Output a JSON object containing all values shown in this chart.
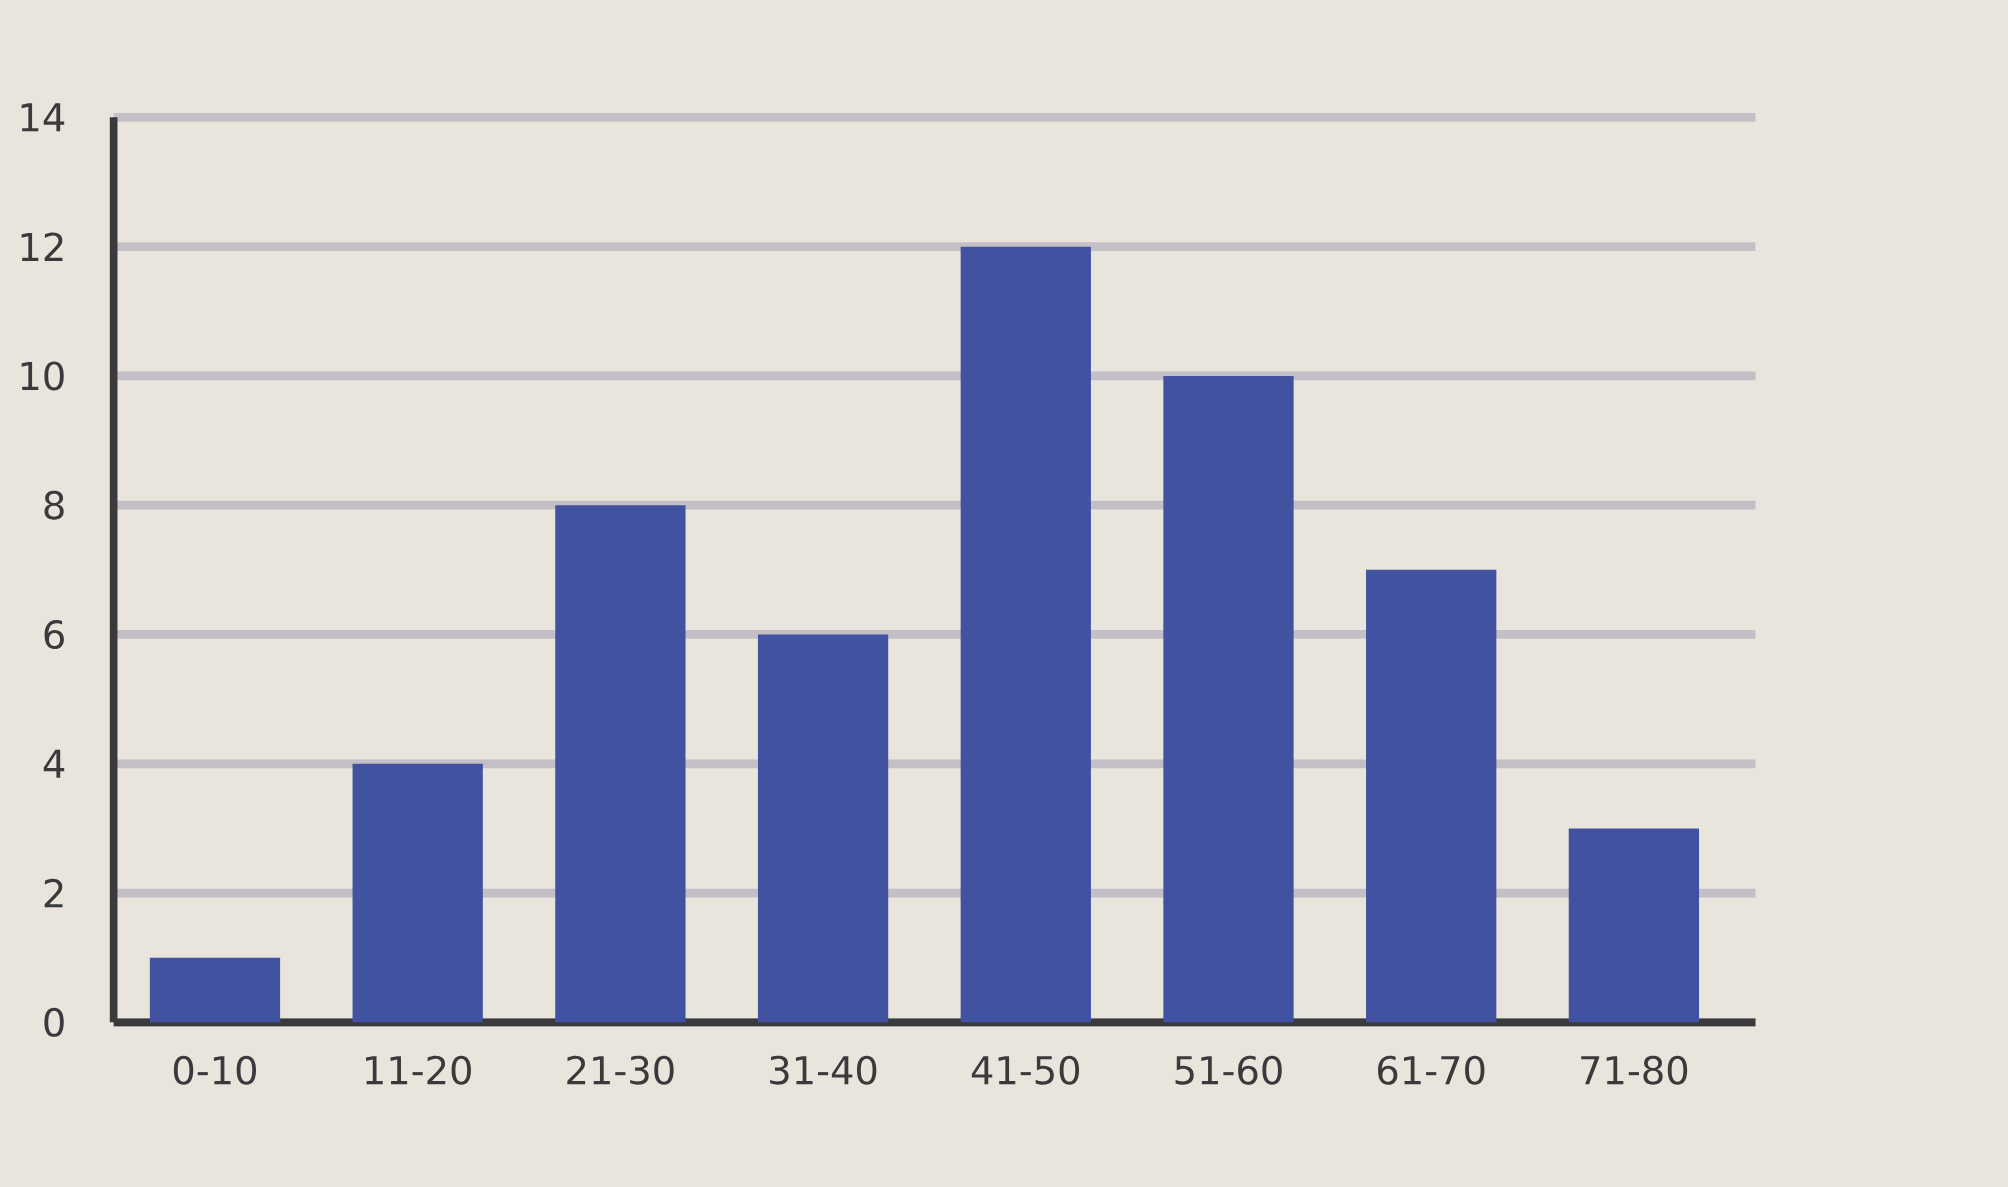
{
  "chart_data": {
    "type": "bar",
    "categories": [
      "0-10",
      "11-20",
      "21-30",
      "31-40",
      "41-50",
      "51-60",
      "61-70",
      "71-80"
    ],
    "values": [
      1,
      4,
      8,
      6,
      12,
      10,
      7,
      3
    ],
    "color": "#4152a0",
    "ylim": [
      0,
      14
    ],
    "yticks": [
      0,
      2,
      4,
      6,
      8,
      10,
      12,
      14
    ],
    "grid": "y"
  }
}
